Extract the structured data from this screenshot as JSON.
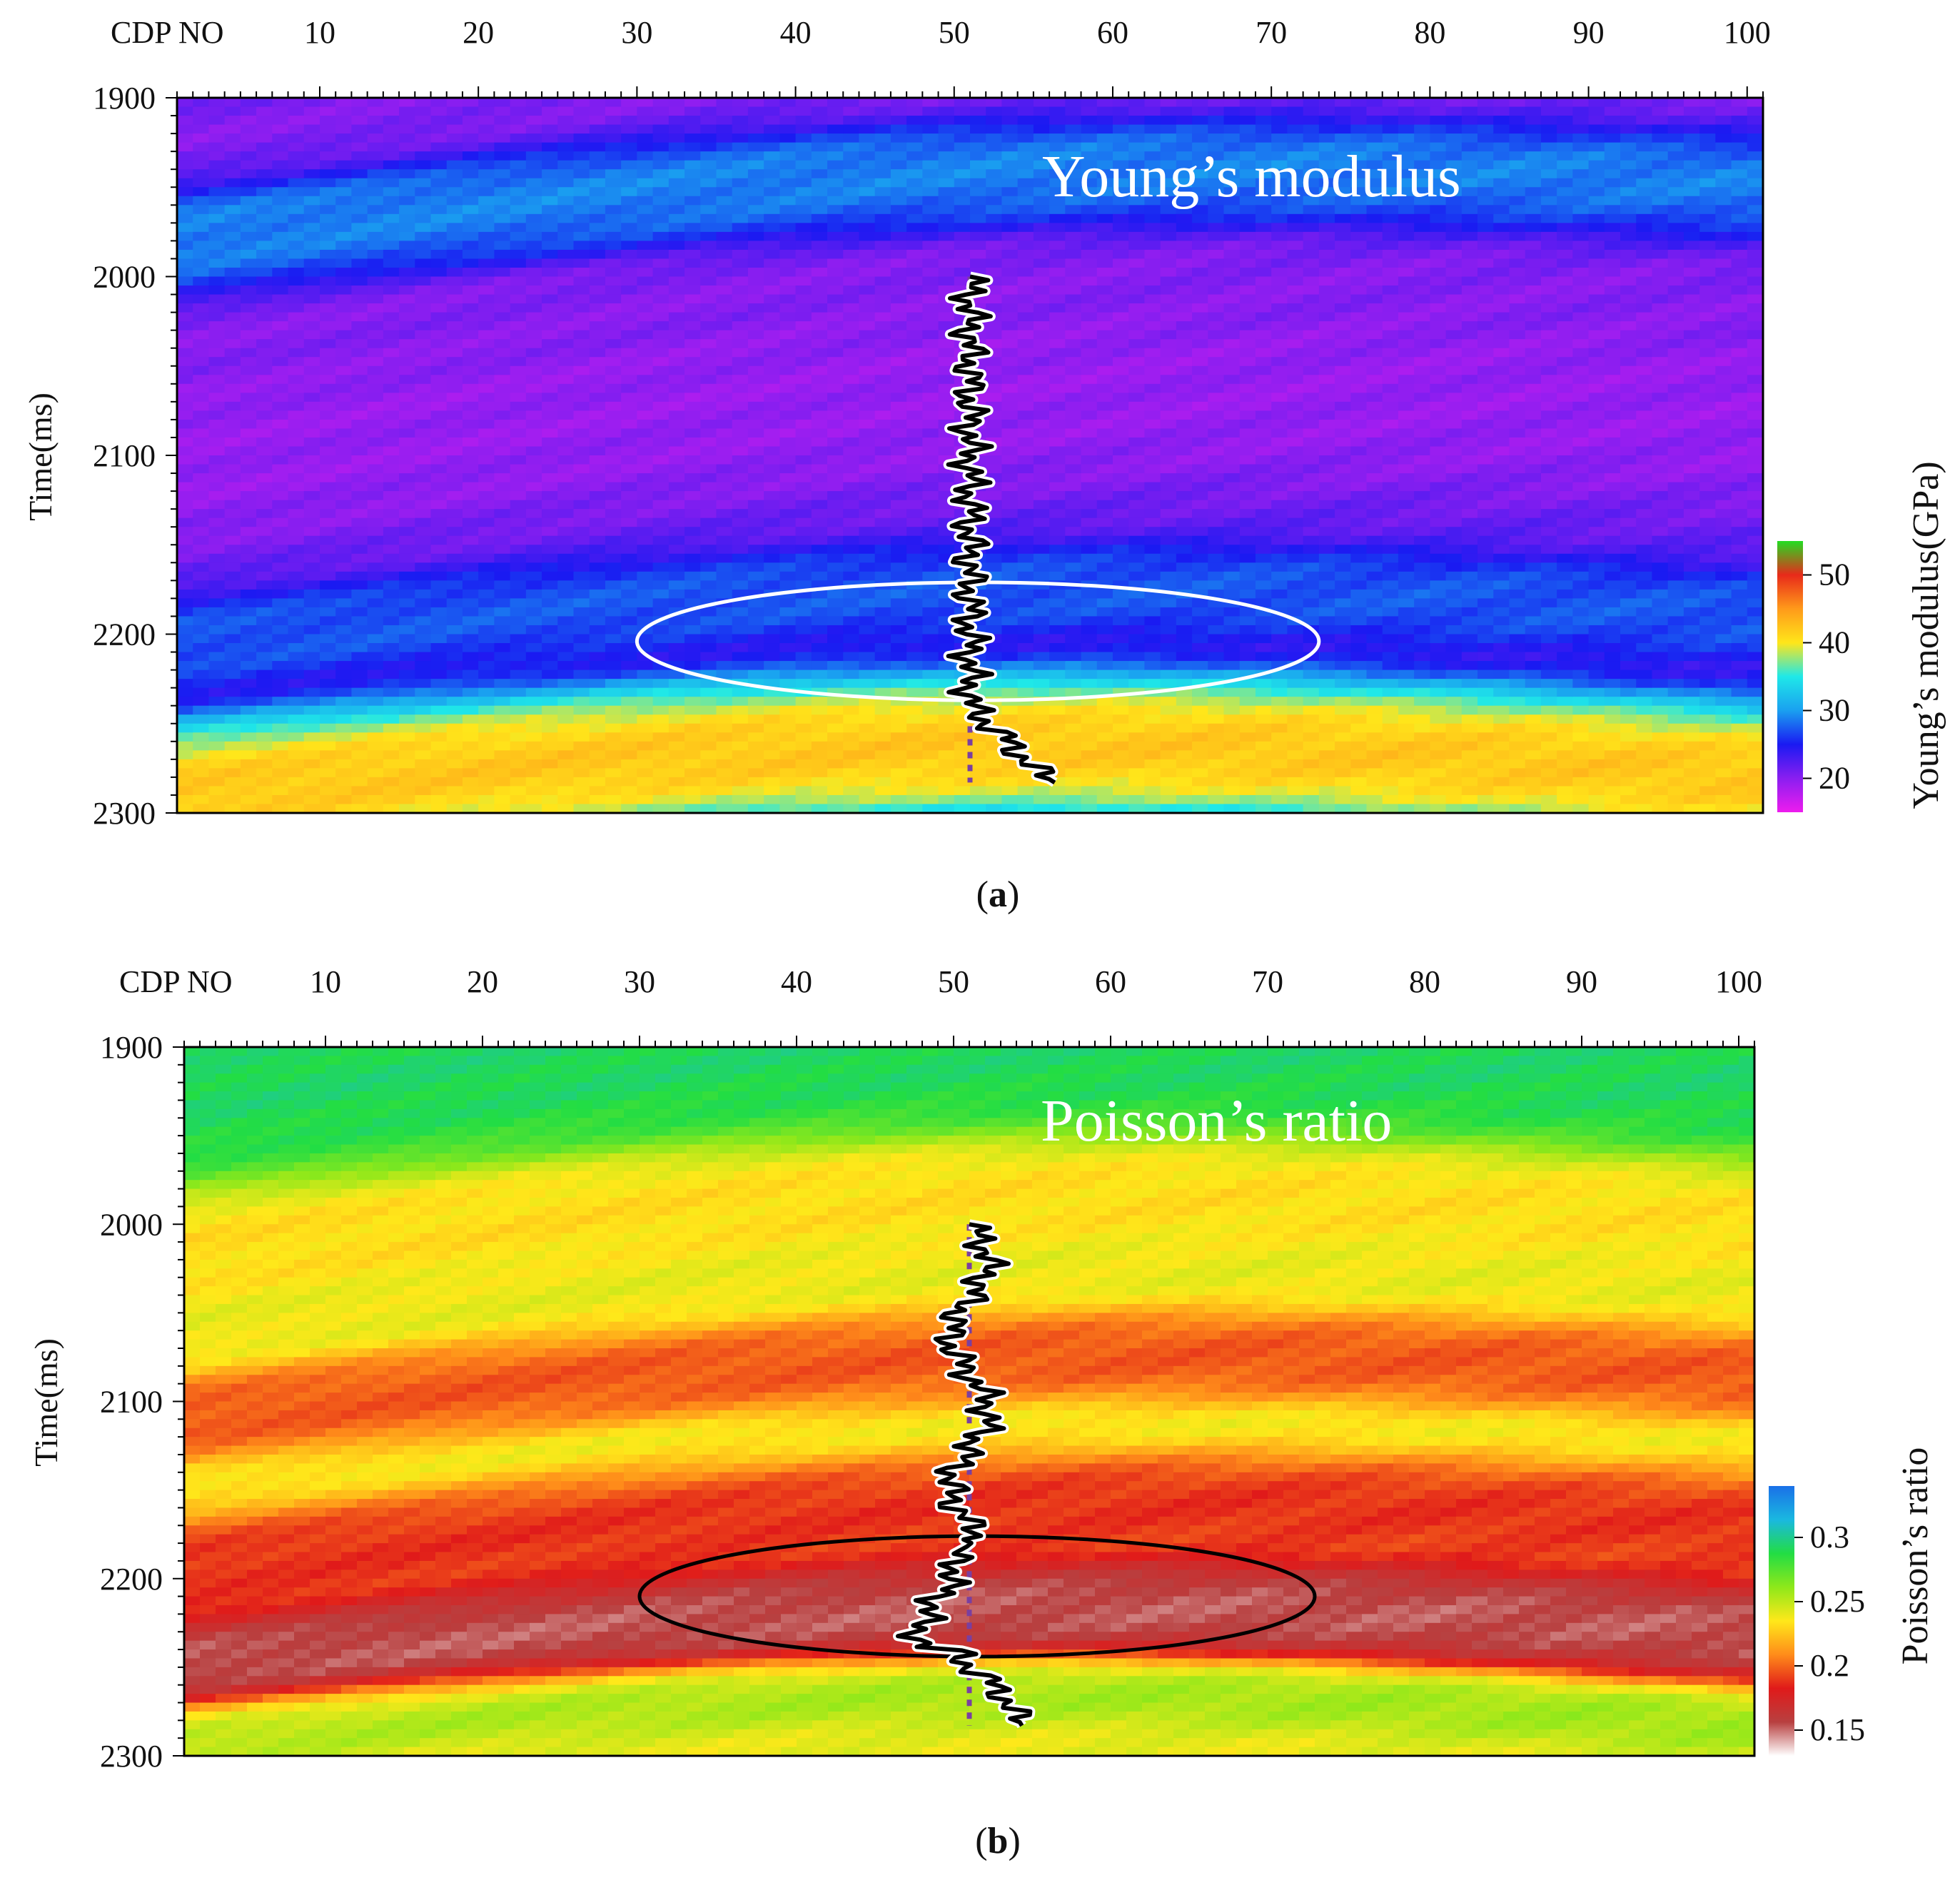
{
  "figure": {
    "panels": [
      {
        "id": "a",
        "caption_letter": "a",
        "x_axis_title": "CDP NO",
        "y_axis_title": "Time(ms)",
        "in_plot_label": "Young’s modulus",
        "colorbar_title": "Young’s modulus(GPa)",
        "x_ticks": [
          "10",
          "20",
          "30",
          "40",
          "50",
          "60",
          "70",
          "80",
          "90",
          "100"
        ],
        "y_ticks": [
          "1900",
          "2000",
          "2100",
          "2200",
          "2300"
        ],
        "colorbar_ticks": [
          "20",
          "30",
          "40",
          "50"
        ],
        "colors": {
          "ellipse": "#ffffff",
          "well_log": "#000000",
          "well_trace": "#7a3fa0"
        }
      },
      {
        "id": "b",
        "caption_letter": "b",
        "x_axis_title": "CDP NO",
        "y_axis_title": "Time(ms)",
        "in_plot_label": "Poisson’s ratio",
        "colorbar_title": "Poisson’s ratio",
        "x_ticks": [
          "10",
          "20",
          "30",
          "40",
          "50",
          "60",
          "70",
          "80",
          "90",
          "100"
        ],
        "y_ticks": [
          "1900",
          "2000",
          "2100",
          "2200",
          "2300"
        ],
        "colorbar_ticks": [
          "0.15",
          "0.2",
          "0.25",
          "0.3"
        ],
        "colors": {
          "ellipse": "#000000",
          "well_log": "#000000",
          "well_trace": "#7a3fa0"
        }
      }
    ]
  },
  "chart_data": [
    {
      "type": "heatmap",
      "title": "Young’s modulus",
      "xlabel": "CDP NO",
      "ylabel": "Time(ms)",
      "xlim": [
        1,
        101
      ],
      "ylim": [
        1900,
        2300
      ],
      "colorbar": {
        "label": "Young’s modulus(GPa)",
        "range": [
          15,
          55
        ],
        "ticks": [
          20,
          30,
          40,
          50
        ],
        "stops": [
          "#ee1cee",
          "#8a1ef0",
          "#1a1af2",
          "#1aa0f0",
          "#1fe8e8",
          "#ffe61a",
          "#ff9a1a",
          "#e82a1a",
          "#22dd22"
        ]
      },
      "well": {
        "cdp": 51,
        "time_range": [
          2000,
          2283
        ]
      },
      "ellipse": {
        "cdp_center": 51.5,
        "time_center": 2204,
        "cdp_half_width": 21.5,
        "time_half_height": 33
      },
      "layers": [
        {
          "value": 20,
          "time_center_left": 1930,
          "time_center_right": 1905,
          "thickness_ms": 30
        },
        {
          "value": 30,
          "time_center_left": 1975,
          "time_center_right": 1940,
          "thickness_ms": 35
        },
        {
          "value": 20,
          "time_center_left": 2040,
          "time_center_right": 2015,
          "thickness_ms": 25
        },
        {
          "value": 19,
          "time_center_left": 2100,
          "time_center_right": 2075,
          "thickness_ms": 55
        },
        {
          "value": 28,
          "time_center_left": 2205,
          "time_center_right": 2190,
          "thickness_ms": 25
        },
        {
          "value": 45,
          "time_center_left": 2290,
          "time_center_right": 2280,
          "thickness_ms": 40
        }
      ]
    },
    {
      "type": "heatmap",
      "title": "Poisson’s ratio",
      "xlabel": "CDP NO",
      "ylabel": "Time(ms)",
      "xlim": [
        1,
        101
      ],
      "ylim": [
        1900,
        2300
      ],
      "colorbar": {
        "label": "Poisson’s ratio",
        "range": [
          0.13,
          0.34
        ],
        "ticks": [
          0.15,
          0.2,
          0.25,
          0.3
        ],
        "stops": [
          "#ffffff",
          "#b84040",
          "#e01a1a",
          "#ff8c1a",
          "#ffe81a",
          "#8ee81a",
          "#22dd44",
          "#1ab8e0",
          "#1a70e8"
        ]
      },
      "well": {
        "cdp": 51,
        "time_range": [
          2000,
          2283
        ]
      },
      "ellipse": {
        "cdp_center": 51.5,
        "time_center": 2210,
        "cdp_half_width": 21.5,
        "time_half_height": 34
      },
      "layers": [
        {
          "value": 0.3,
          "time_center_left": 1925,
          "time_center_right": 1915,
          "thickness_ms": 60
        },
        {
          "value": 0.23,
          "time_center_left": 2010,
          "time_center_right": 1990,
          "thickness_ms": 30
        },
        {
          "value": 0.19,
          "time_center_left": 2110,
          "time_center_right": 2085,
          "thickness_ms": 25
        },
        {
          "value": 0.18,
          "time_center_left": 2195,
          "time_center_right": 2170,
          "thickness_ms": 30
        },
        {
          "value": 0.14,
          "time_center_left": 2250,
          "time_center_right": 2230,
          "thickness_ms": 35
        },
        {
          "value": 0.26,
          "time_center_left": 2285,
          "time_center_right": 2280,
          "thickness_ms": 20
        }
      ]
    }
  ]
}
